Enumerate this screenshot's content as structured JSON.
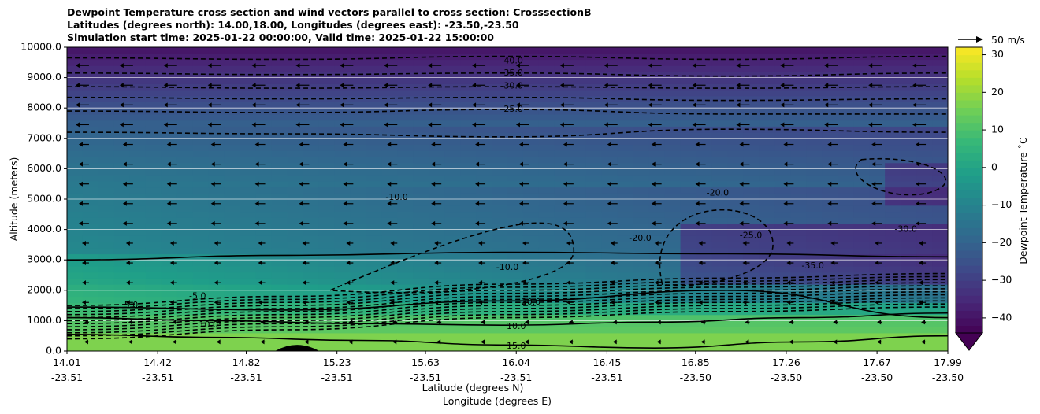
{
  "chart_data": {
    "type": "heatmap",
    "title_lines": [
      "Dewpoint Temperature cross section and wind vectors parallel to cross section: CrosssectionB",
      "Latitudes (degrees north): 14.00,18.00, Longitudes (degrees east): -23.50,-23.50",
      "Simulation start time: 2025-01-22 00:00:00, Valid time: 2025-01-22 15:00:00"
    ],
    "xlabel_line1": "Latitude (degrees N)",
    "xlabel_line2": "Longitude (degrees E)",
    "ylabel": "Altitude (meters)",
    "colorbar_label": "Dewpoint Temperature ˚C",
    "wind_key_label": "50 m/s",
    "wind_key_value": 50,
    "ylim": [
      0,
      10000
    ],
    "x_ticks": [
      {
        "lat": "14.01",
        "lon": "-23.51"
      },
      {
        "lat": "14.42",
        "lon": "-23.51"
      },
      {
        "lat": "14.82",
        "lon": "-23.51"
      },
      {
        "lat": "15.23",
        "lon": "-23.51"
      },
      {
        "lat": "15.63",
        "lon": "-23.51"
      },
      {
        "lat": "16.04",
        "lon": "-23.51"
      },
      {
        "lat": "16.45",
        "lon": "-23.51"
      },
      {
        "lat": "16.85",
        "lon": "-23.50"
      },
      {
        "lat": "17.26",
        "lon": "-23.50"
      },
      {
        "lat": "17.67",
        "lon": "-23.50"
      },
      {
        "lat": "17.99",
        "lon": "-23.50"
      }
    ],
    "y_ticks": [
      "0.0",
      "1000.0",
      "2000.0",
      "3000.0",
      "4000.0",
      "5000.0",
      "6000.0",
      "7000.0",
      "8000.0",
      "9000.0",
      "10000.0"
    ],
    "y_tick_values": [
      0,
      1000,
      2000,
      3000,
      4000,
      5000,
      6000,
      7000,
      8000,
      9000,
      10000
    ],
    "colorbar_range": [
      -44,
      32
    ],
    "colorbar_ticks": [
      "30",
      "20",
      "10",
      "0",
      "−10",
      "−20",
      "−30",
      "−40"
    ],
    "colorbar_tick_values": [
      30,
      20,
      10,
      0,
      -10,
      -20,
      -30,
      -40
    ],
    "colormap": [
      "#440154",
      "#482878",
      "#3e4a89",
      "#31688e",
      "#26828e",
      "#1f9e89",
      "#35b779",
      "#6ece58",
      "#b5de2b",
      "#fde725"
    ],
    "colorbar_extend": "min",
    "grid": true,
    "contour_labels": [
      {
        "text": "-40.0",
        "x": 16.02,
        "y": 9550
      },
      {
        "text": "-35.0",
        "x": 16.02,
        "y": 9150
      },
      {
        "text": "-30.0",
        "x": 16.02,
        "y": 8720
      },
      {
        "text": "-25.0",
        "x": 16.02,
        "y": 7950
      },
      {
        "text": "-10.0",
        "x": 15.5,
        "y": 5050
      },
      {
        "text": "-10.0",
        "x": 16.0,
        "y": 2750
      },
      {
        "text": "-20.0",
        "x": 16.1,
        "y": 1600
      },
      {
        "text": "10.0",
        "x": 16.04,
        "y": 800
      },
      {
        "text": "15.0",
        "x": 16.04,
        "y": 150
      },
      {
        "text": "5.0",
        "x": 14.3,
        "y": 1500
      },
      {
        "text": "-5.0",
        "x": 14.6,
        "y": 1800
      },
      {
        "text": "10.0",
        "x": 14.65,
        "y": 850
      },
      {
        "text": "-20.0",
        "x": 16.6,
        "y": 3700
      },
      {
        "text": "-35.0",
        "x": 17.38,
        "y": 2800
      },
      {
        "text": "-30.0",
        "x": 17.8,
        "y": 4000
      },
      {
        "text": "-25.0",
        "x": 17.1,
        "y": 3800
      },
      {
        "text": "-20.0",
        "x": 16.95,
        "y": 5200
      }
    ],
    "zero_contour_y": [
      3000,
      3150,
      3250,
      3200,
      3100
    ],
    "five_contour_y": [
      1450,
      1350,
      1650,
      2000,
      1100
    ],
    "ten_contour_y": [
      1100,
      1000,
      900,
      850,
      950,
      1100,
      1250
    ],
    "fifteen_contour_y": [
      550,
      450,
      350,
      200,
      100,
      300,
      500
    ],
    "dashed_levels_y": [
      [
        9650,
        9600,
        9700,
        9600,
        9700
      ],
      [
        9150,
        9100,
        9150,
        9050,
        9150
      ],
      [
        8700,
        8650,
        8700,
        8650,
        8700
      ],
      [
        8350,
        8300,
        8350,
        8250,
        8300
      ],
      [
        7900,
        7850,
        7950,
        7800,
        7800
      ],
      [
        7200,
        7150,
        7050,
        7300,
        7200
      ]
    ],
    "terrain_peak": {
      "x": 15.05,
      "height": 200
    }
  }
}
